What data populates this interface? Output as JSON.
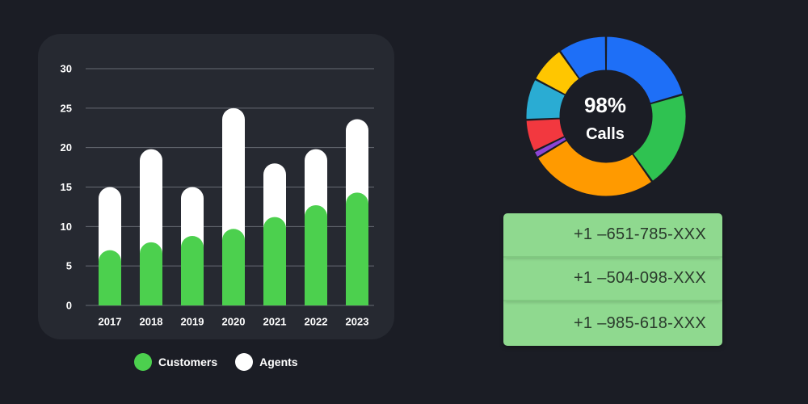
{
  "chart_data": [
    {
      "type": "bar",
      "stacked": false,
      "categories": [
        "2017",
        "2018",
        "2019",
        "2020",
        "2021",
        "2022",
        "2023"
      ],
      "series": [
        {
          "name": "Customers",
          "color": "#4cd04e",
          "values": [
            7,
            8,
            8.8,
            9.7,
            11.2,
            12.7,
            14.3
          ]
        },
        {
          "name": "Agents",
          "color": "#ffffff",
          "values": [
            15,
            19.8,
            15,
            25,
            18,
            19.8,
            23.6
          ]
        }
      ],
      "yticks": [
        0,
        5,
        10,
        15,
        20,
        25,
        30
      ],
      "ylim": [
        0,
        30
      ],
      "grid": true,
      "legend": "bottom",
      "title": "",
      "xlabel": "",
      "ylabel": ""
    },
    {
      "type": "pie",
      "donut": true,
      "center_value": "98%",
      "center_label": "Calls",
      "slices": [
        {
          "color": "#1e6ff7",
          "value": 22
        },
        {
          "color": "#2fc251",
          "value": 21
        },
        {
          "color": "#ff9a00",
          "value": 28
        },
        {
          "color": "#8d44d6",
          "value": 1.5
        },
        {
          "color": "#f2383f",
          "value": 7
        },
        {
          "color": "#2aacd3",
          "value": 9
        },
        {
          "color": "#ffc600",
          "value": 8
        },
        {
          "color": "#1e6ff7",
          "value": 10.5
        }
      ]
    }
  ],
  "legend": {
    "customers_label": "Customers",
    "agents_label": "Agents"
  },
  "phones": [
    "+1 –651-785-XXX",
    "+1 –504-098-XXX",
    "+1 –985-618-XXX"
  ]
}
